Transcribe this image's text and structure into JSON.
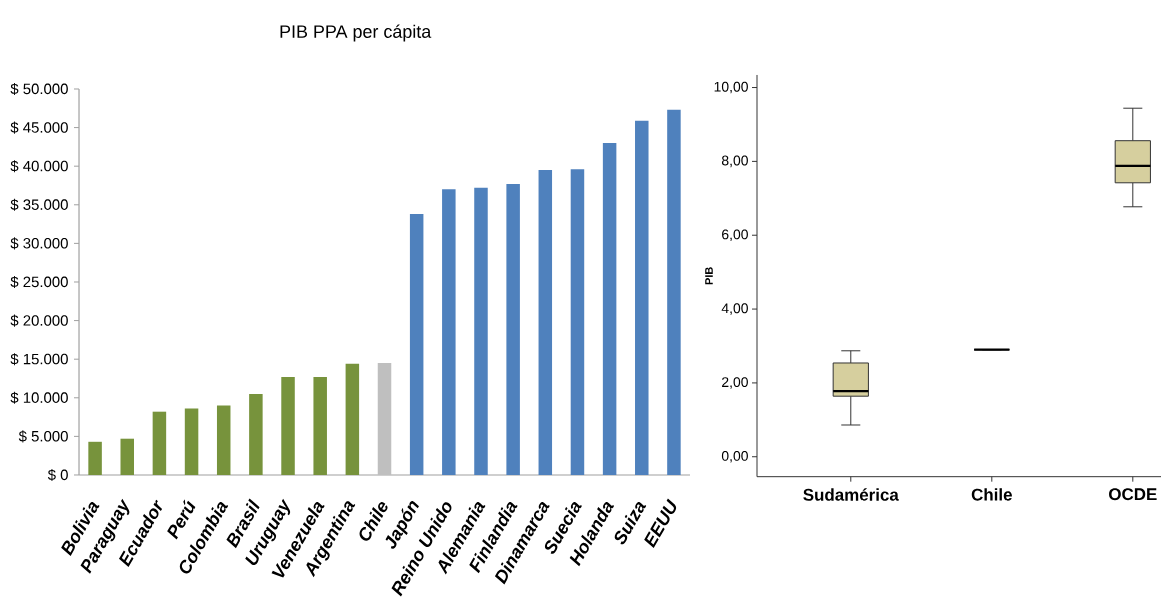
{
  "chart_data": [
    {
      "type": "bar",
      "title": "PIB PPA per cápita",
      "categories": [
        "Bolivia",
        "Paraguay",
        "Ecuador",
        "Perú",
        "Colombia",
        "Brasil",
        "Uruguay",
        "Venezuela",
        "Argentina",
        "Chile",
        "Japón",
        "Reino Unido",
        "Alemania",
        "Finlandia",
        "Dinamarca",
        "Suecia",
        "Holanda",
        "Suiza",
        "EEUU"
      ],
      "values": [
        4300,
        4700,
        8200,
        8600,
        9000,
        10500,
        12700,
        12700,
        14400,
        14500,
        33800,
        37000,
        37200,
        37700,
        39500,
        39600,
        43000,
        45900,
        47300
      ],
      "colors": [
        "#77933c",
        "#77933c",
        "#77933c",
        "#77933c",
        "#77933c",
        "#77933c",
        "#77933c",
        "#77933c",
        "#77933c",
        "#bfbfbf",
        "#4f81bd",
        "#4f81bd",
        "#4f81bd",
        "#4f81bd",
        "#4f81bd",
        "#4f81bd",
        "#4f81bd",
        "#4f81bd",
        "#4f81bd"
      ],
      "ylim": [
        0,
        50000
      ],
      "yticks": [
        {
          "value": 0,
          "label": "$ 0"
        },
        {
          "value": 5000,
          "label": "$ 5.000"
        },
        {
          "value": 10000,
          "label": "$ 10.000"
        },
        {
          "value": 15000,
          "label": "$ 15.000"
        },
        {
          "value": 20000,
          "label": "$ 20.000"
        },
        {
          "value": 25000,
          "label": "$ 25.000"
        },
        {
          "value": 30000,
          "label": "$ 30.000"
        },
        {
          "value": 35000,
          "label": "$ 35.000"
        },
        {
          "value": 40000,
          "label": "$ 40.000"
        },
        {
          "value": 45000,
          "label": "$ 45.000"
        },
        {
          "value": 50000,
          "label": "$ 50.000"
        }
      ]
    },
    {
      "type": "box",
      "ylabel": "PIB",
      "categories": [
        "Sudamérica",
        "Chile",
        "OCDE"
      ],
      "series": [
        {
          "colors": [
            "#d6cf9e",
            "#333333",
            "#d6cf9e"
          ],
          "boxes": [
            {
              "low": 0.86,
              "q1": 1.64,
              "median": 1.78,
              "q3": 2.54,
              "high": 2.87
            },
            {
              "low": 2.9,
              "q1": 2.9,
              "median": 2.9,
              "q3": 2.9,
              "high": 2.9
            },
            {
              "low": 6.77,
              "q1": 7.42,
              "median": 7.88,
              "q3": 8.56,
              "high": 9.44
            }
          ]
        }
      ],
      "ylim": [
        -0.54,
        10.34
      ],
      "yticks": [
        {
          "value": 0,
          "label": "0,00"
        },
        {
          "value": 2,
          "label": "2,00"
        },
        {
          "value": 4,
          "label": "4,00"
        },
        {
          "value": 6,
          "label": "6,00"
        },
        {
          "value": 8,
          "label": "8,00"
        },
        {
          "value": 10,
          "label": "10,00"
        }
      ]
    }
  ]
}
